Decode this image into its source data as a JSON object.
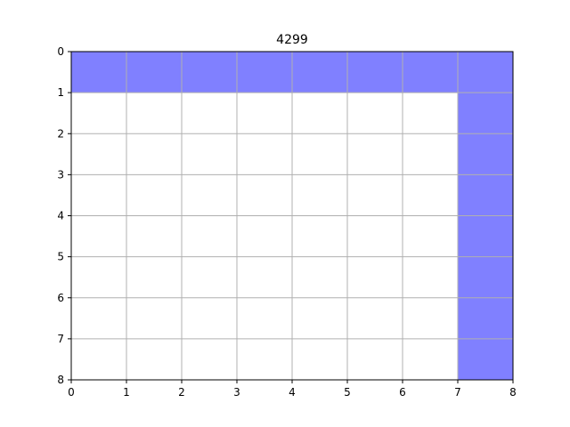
{
  "chart_data": {
    "type": "heatmap",
    "title": "4299",
    "xlabel": "",
    "ylabel": "",
    "xlim": [
      0,
      8
    ],
    "ylim": [
      0,
      8
    ],
    "y_inverted": true,
    "grid": true,
    "x_ticks": [
      "0",
      "1",
      "2",
      "3",
      "4",
      "5",
      "6",
      "7",
      "8"
    ],
    "y_ticks": [
      "0",
      "1",
      "2",
      "3",
      "4",
      "5",
      "6",
      "7",
      "8"
    ],
    "fill_color": "#8080ff",
    "grid_color": "#b0b0b0",
    "filled_cells": [
      [
        0,
        0
      ],
      [
        1,
        0
      ],
      [
        2,
        0
      ],
      [
        3,
        0
      ],
      [
        4,
        0
      ],
      [
        5,
        0
      ],
      [
        6,
        0
      ],
      [
        7,
        0
      ],
      [
        7,
        1
      ],
      [
        7,
        2
      ],
      [
        7,
        3
      ],
      [
        7,
        4
      ],
      [
        7,
        5
      ],
      [
        7,
        6
      ],
      [
        7,
        7
      ]
    ]
  }
}
